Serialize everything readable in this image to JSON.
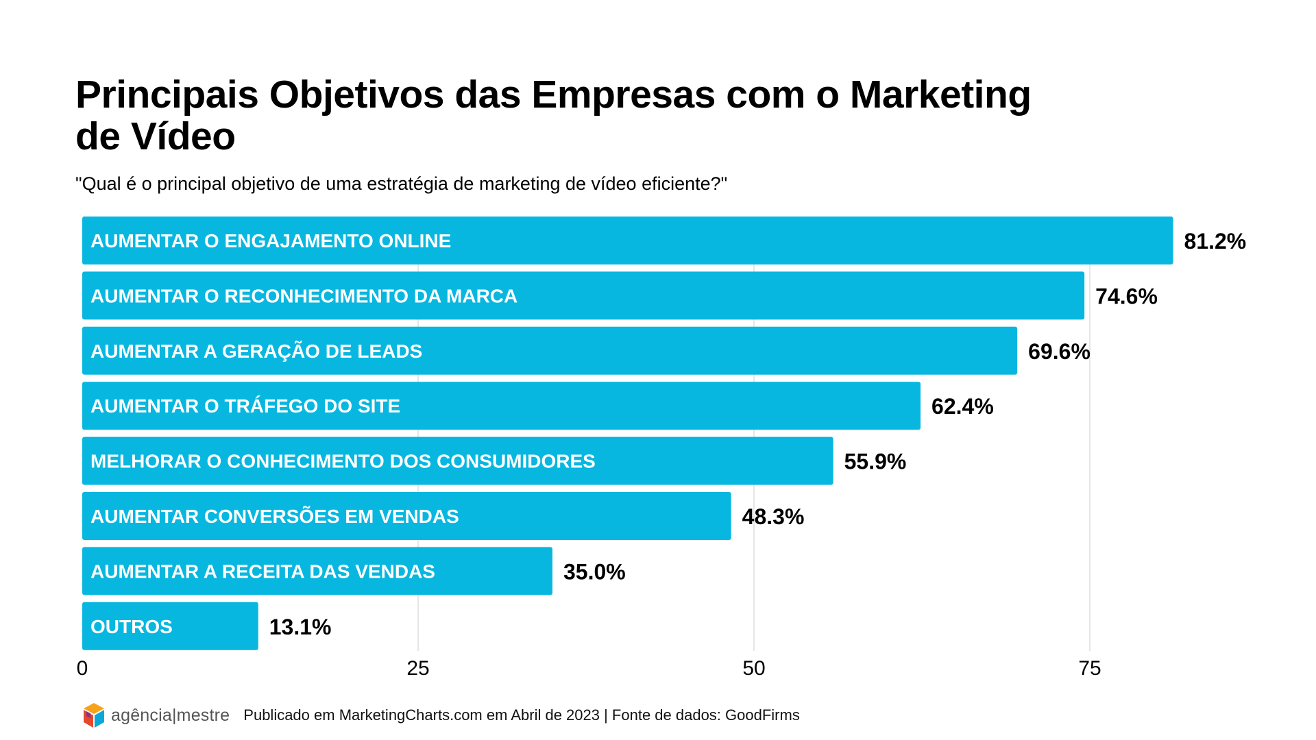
{
  "title": "Principais Objetivos das Empresas com o Marketing de Vídeo",
  "subtitle": "\"Qual é o principal objetivo de uma estratégia de marketing de vídeo eficiente?\"",
  "footer": {
    "logo_text": "agência|mestre",
    "source": "Publicado em MarketingCharts.com em Abril de 2023 | Fonte de dados: GoodFirms"
  },
  "colors": {
    "bar": "#07b7e0",
    "grid": "#dddddd",
    "text": "#000000"
  },
  "chart_data": {
    "type": "bar",
    "orientation": "horizontal",
    "title": "Principais Objetivos das Empresas com o Marketing de Vídeo",
    "subtitle": "\"Qual é o principal objetivo de uma estratégia de marketing de vídeo eficiente?\"",
    "categories": [
      "AUMENTAR O ENGAJAMENTO ONLINE",
      "AUMENTAR O RECONHECIMENTO DA MARCA",
      "AUMENTAR A GERAÇÃO DE LEADS",
      "AUMENTAR O TRÁFEGO DO SITE",
      "MELHORAR O CONHECIMENTO DOS CONSUMIDORES",
      "AUMENTAR CONVERSÕES EM VENDAS",
      "AUMENTAR A RECEITA DAS VENDAS",
      "OUTROS"
    ],
    "values": [
      81.2,
      74.6,
      69.6,
      62.4,
      55.9,
      48.3,
      35.0,
      13.1
    ],
    "value_labels": [
      "81.2%",
      "74.6%",
      "69.6%",
      "62.4%",
      "55.9%",
      "48.3%",
      "35.0%",
      "13.1%"
    ],
    "x_ticks": [
      "0",
      "25",
      "50",
      "75"
    ],
    "x_tick_values": [
      0,
      25,
      50,
      75
    ],
    "xlim": [
      0,
      82
    ],
    "grid": true,
    "legend": "none"
  }
}
